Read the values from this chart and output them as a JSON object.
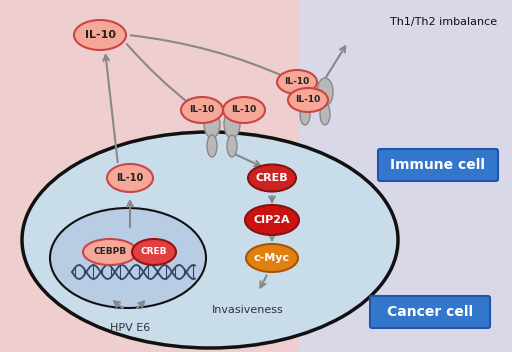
{
  "bg_left_color": "#eecece",
  "bg_right_color": "#d8d8e8",
  "cancer_cell_color": "#c8dcea",
  "nucleus_color": "#b8cce4",
  "cell_outline_color": "#111111",
  "il10_fill": "#f5a898",
  "il10_stroke": "#cc4444",
  "creb_fill": "#cc2222",
  "creb_text_color": "#ffffff",
  "cip2a_fill": "#cc1111",
  "cip2a_text_color": "#ffffff",
  "cmyc_fill": "#e08010",
  "cmyc_text_color": "#ffffff",
  "cebpb_fill": "#f5a898",
  "cebpb_stroke": "#cc4444",
  "creb_nucleus_fill": "#e04040",
  "receptor_color": "#b8b8b8",
  "receptor_edge": "#888888",
  "arrow_color": "#888888",
  "label_immune": "Immune cell",
  "label_cancer": "Cancer cell",
  "label_th": "Th1/Th2 imbalance",
  "label_hpv": "HPV E6",
  "label_invasiveness": "Invasiveness",
  "box_color": "#3377cc",
  "box_text_color": "#ffffff",
  "dna_color": "#334466"
}
